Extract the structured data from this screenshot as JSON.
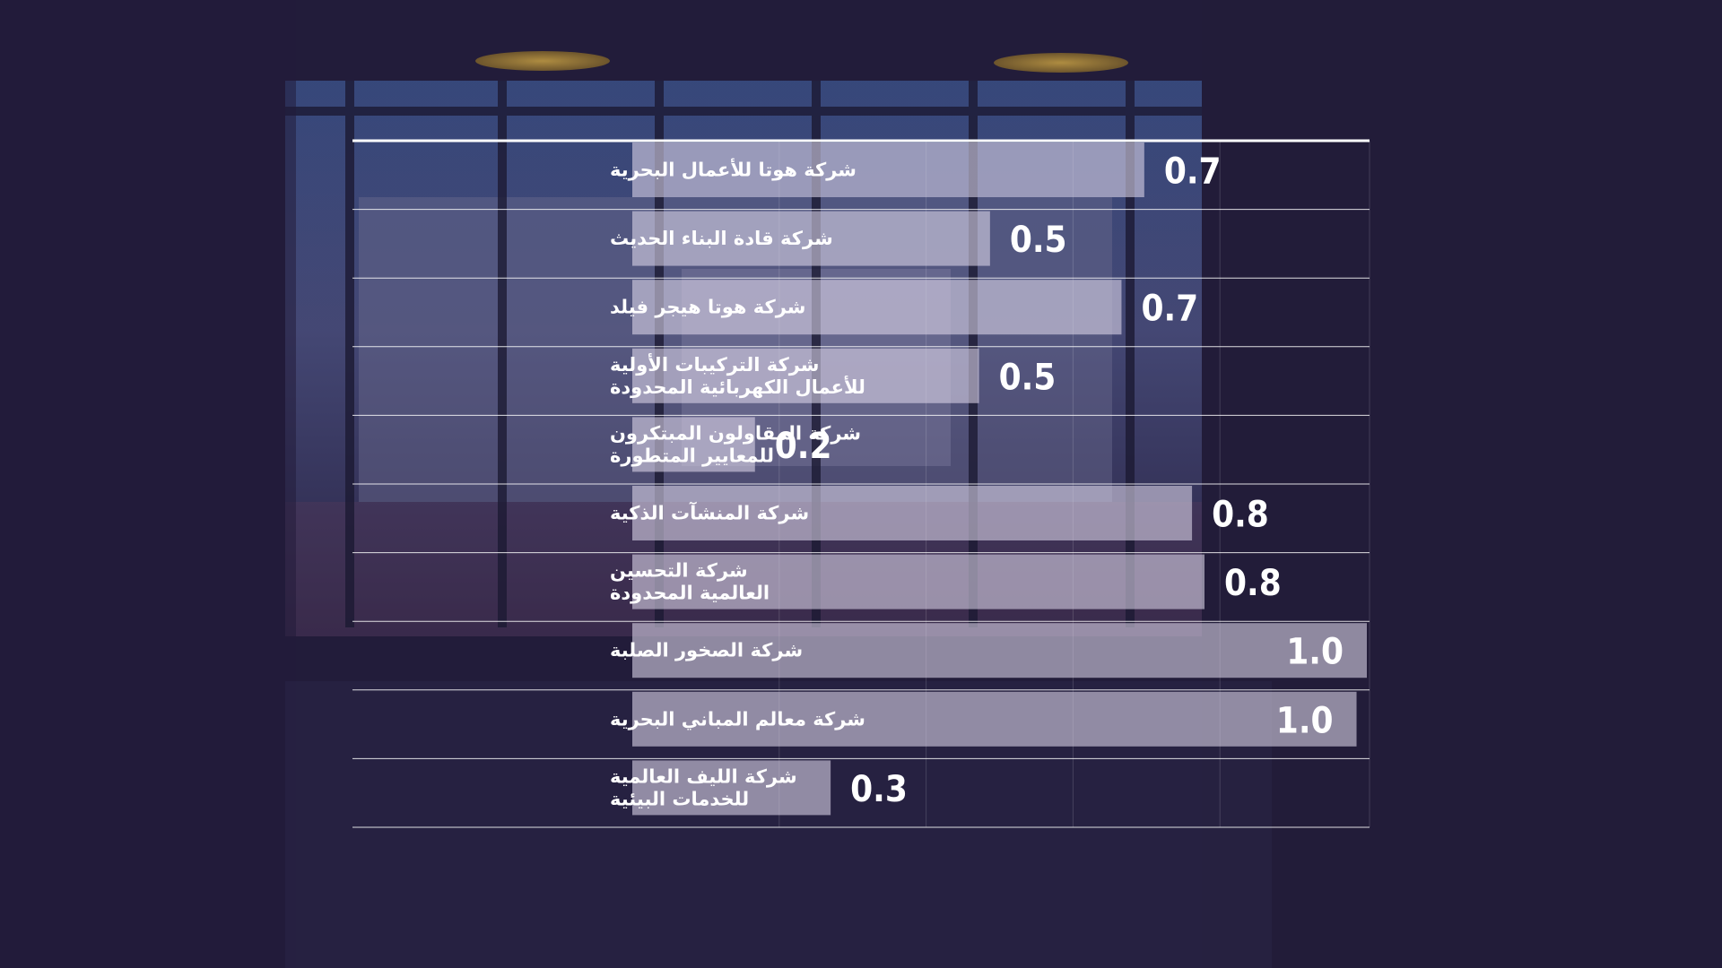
{
  "chart_data": {
    "type": "bar",
    "orientation": "horizontal",
    "categories": [
      [
        "شركة هوتا للأعمال البحرية"
      ],
      [
        "شركة قادة البناء الحديث"
      ],
      [
        "شركة هوتا هيجر فيلد"
      ],
      [
        "شركة التركيبات الأولية",
        "للأعمال الكهربائية المحدودة"
      ],
      [
        "شركة المقاولون المبتكرون",
        "للمعايير المتطورة"
      ],
      [
        "شركة المنشآت الذكية"
      ],
      [
        "شركة التحسين",
        "العالمية المحدودة"
      ],
      [
        "شركة الصخور الصلبة"
      ],
      [
        "شركة معالم المباني البحرية"
      ],
      [
        "شركة الليف العالمية",
        "للخدمات البيئية"
      ]
    ],
    "values": [
      0.7,
      0.5,
      0.7,
      0.5,
      0.2,
      0.8,
      0.8,
      1.0,
      1.0,
      0.3
    ],
    "value_labels": [
      "0.7",
      "0.5",
      "0.7",
      "0.5",
      "0.2",
      "0.8",
      "0.8",
      "1.0",
      "1.0",
      "0.3"
    ],
    "bar_values": [
      0.697,
      0.487,
      0.666,
      0.472,
      0.167,
      0.762,
      0.779,
      1.0,
      0.986,
      0.27
    ],
    "xlim": [
      0,
      1
    ],
    "grid": true,
    "legend": "none",
    "colors": {
      "bar": "#d9d2e6",
      "text": "#ffffff",
      "divider": "#ffffff",
      "background": "#221c3a"
    }
  }
}
